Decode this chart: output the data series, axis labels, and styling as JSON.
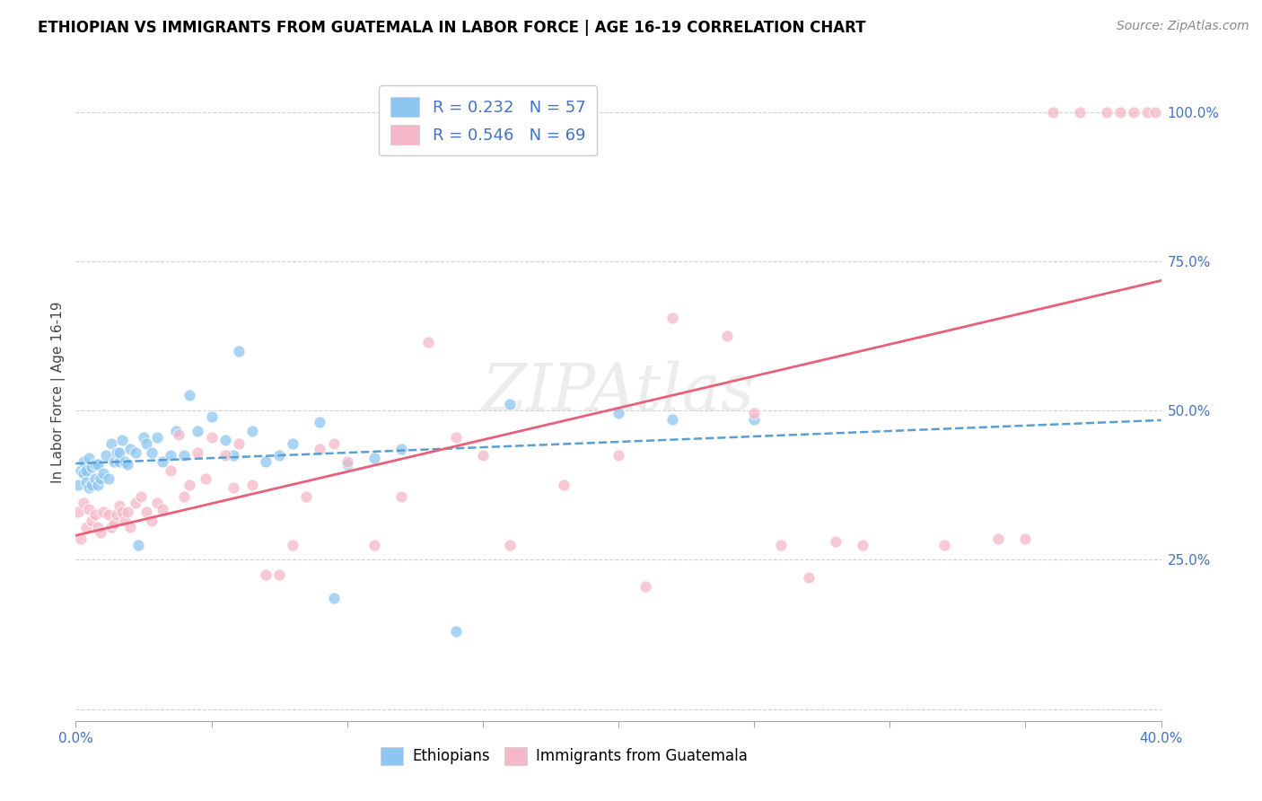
{
  "title": "ETHIOPIAN VS IMMIGRANTS FROM GUATEMALA IN LABOR FORCE | AGE 16-19 CORRELATION CHART",
  "source": "Source: ZipAtlas.com",
  "ylabel": "In Labor Force | Age 16-19",
  "xlim": [
    0.0,
    0.4
  ],
  "ylim": [
    -0.02,
    1.08
  ],
  "yticks": [
    0.0,
    0.25,
    0.5,
    0.75,
    1.0
  ],
  "ytick_labels": [
    "",
    "25.0%",
    "50.0%",
    "75.0%",
    "100.0%"
  ],
  "xticks": [
    0.0,
    0.05,
    0.1,
    0.15,
    0.2,
    0.25,
    0.3,
    0.35,
    0.4
  ],
  "xtick_labels": [
    "0.0%",
    "",
    "",
    "",
    "",
    "",
    "",
    "",
    "40.0%"
  ],
  "ethiopian_color": "#8dc6f0",
  "guatemala_color": "#f5b8c8",
  "ethiopian_line_color": "#5a9fd4",
  "guatemala_line_color": "#e8607a",
  "legend1_label1": "R = 0.232   N = 57",
  "legend1_label2": "R = 0.546   N = 69",
  "legend2_label1": "Ethiopians",
  "legend2_label2": "Immigrants from Guatemala",
  "ethiopian_x": [
    0.001,
    0.002,
    0.003,
    0.003,
    0.004,
    0.004,
    0.005,
    0.005,
    0.006,
    0.006,
    0.007,
    0.007,
    0.008,
    0.008,
    0.009,
    0.01,
    0.011,
    0.012,
    0.013,
    0.014,
    0.015,
    0.016,
    0.016,
    0.017,
    0.018,
    0.019,
    0.02,
    0.022,
    0.023,
    0.025,
    0.026,
    0.028,
    0.03,
    0.032,
    0.035,
    0.037,
    0.04,
    0.042,
    0.045,
    0.05,
    0.055,
    0.058,
    0.06,
    0.065,
    0.07,
    0.075,
    0.08,
    0.09,
    0.095,
    0.1,
    0.11,
    0.12,
    0.14,
    0.16,
    0.2,
    0.22,
    0.25
  ],
  "ethiopian_y": [
    0.375,
    0.4,
    0.395,
    0.415,
    0.38,
    0.4,
    0.37,
    0.42,
    0.375,
    0.405,
    0.385,
    0.41,
    0.41,
    0.375,
    0.385,
    0.395,
    0.425,
    0.385,
    0.445,
    0.415,
    0.43,
    0.415,
    0.43,
    0.45,
    0.415,
    0.41,
    0.435,
    0.43,
    0.275,
    0.455,
    0.445,
    0.43,
    0.455,
    0.415,
    0.425,
    0.465,
    0.425,
    0.525,
    0.465,
    0.49,
    0.45,
    0.425,
    0.6,
    0.465,
    0.415,
    0.425,
    0.445,
    0.48,
    0.185,
    0.41,
    0.42,
    0.435,
    0.13,
    0.51,
    0.495,
    0.485,
    0.485
  ],
  "guatemala_x": [
    0.001,
    0.002,
    0.003,
    0.004,
    0.005,
    0.006,
    0.007,
    0.008,
    0.009,
    0.01,
    0.012,
    0.013,
    0.014,
    0.015,
    0.016,
    0.017,
    0.018,
    0.019,
    0.02,
    0.022,
    0.024,
    0.026,
    0.028,
    0.03,
    0.032,
    0.035,
    0.038,
    0.04,
    0.042,
    0.045,
    0.048,
    0.05,
    0.055,
    0.058,
    0.06,
    0.065,
    0.07,
    0.075,
    0.08,
    0.085,
    0.09,
    0.095,
    0.1,
    0.11,
    0.12,
    0.13,
    0.14,
    0.15,
    0.16,
    0.18,
    0.2,
    0.21,
    0.22,
    0.24,
    0.25,
    0.26,
    0.27,
    0.28,
    0.29,
    0.32,
    0.34,
    0.35,
    0.36,
    0.37,
    0.38,
    0.385,
    0.39,
    0.395,
    0.398
  ],
  "guatemala_y": [
    0.33,
    0.285,
    0.345,
    0.305,
    0.335,
    0.315,
    0.325,
    0.305,
    0.295,
    0.33,
    0.325,
    0.305,
    0.31,
    0.325,
    0.34,
    0.33,
    0.315,
    0.33,
    0.305,
    0.345,
    0.355,
    0.33,
    0.315,
    0.345,
    0.335,
    0.4,
    0.46,
    0.355,
    0.375,
    0.43,
    0.385,
    0.455,
    0.425,
    0.37,
    0.445,
    0.375,
    0.225,
    0.225,
    0.275,
    0.355,
    0.435,
    0.445,
    0.415,
    0.275,
    0.355,
    0.615,
    0.455,
    0.425,
    0.275,
    0.375,
    0.425,
    0.205,
    0.655,
    0.625,
    0.495,
    0.275,
    0.22,
    0.28,
    0.275,
    0.275,
    0.285,
    0.285,
    1.0,
    1.0,
    1.0,
    1.0,
    1.0,
    1.0,
    1.0
  ]
}
